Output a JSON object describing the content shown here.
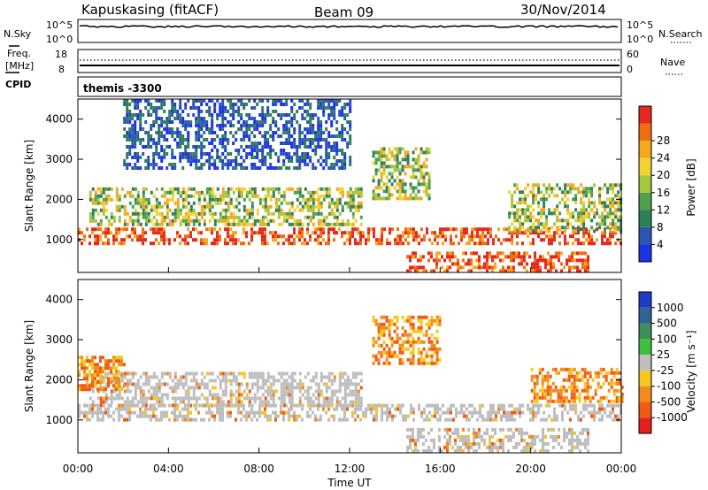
{
  "header": {
    "station": "Kapuskasing (fitACF)",
    "beam": "Beam 09",
    "date": "30/Nov/2014"
  },
  "strips": {
    "nsky_label": "N.Sky",
    "nsearch_label": "N.Search",
    "nsky_ticks": [
      "10^5",
      "10^0"
    ],
    "nsearch_ticks": [
      "10^5",
      "10^0"
    ],
    "freq_label_1": "Freq.",
    "freq_label_2": "[MHz]",
    "freq_ticks": [
      "18",
      "8"
    ],
    "nave_label": "Nave",
    "nave_ticks": [
      "60",
      "0"
    ],
    "cpid_label": "CPID",
    "cpid_value": "themis -3300"
  },
  "chart_data": [
    {
      "type": "heatmap",
      "name": "power-panel",
      "ylabel": "Slant Range [km]",
      "xlabel": "",
      "xlim": [
        "00:00",
        "00:00"
      ],
      "ylim": [
        180,
        4500
      ],
      "y_ticks": [
        1000,
        2000,
        3000,
        4000
      ],
      "colorbar": {
        "label": "Power [dB]",
        "ticks": [
          4,
          8,
          12,
          16,
          20,
          24,
          28
        ],
        "colors": [
          "#1e32e6",
          "#2d56b4",
          "#2f7f5a",
          "#4fa04a",
          "#a4c641",
          "#f0d232",
          "#f5a81e",
          "#f06e12",
          "#e6281e"
        ]
      },
      "features": [
        {
          "start": "00:00",
          "end": "24:00",
          "range_km": [
            900,
            1300
          ],
          "level": "high"
        },
        {
          "start": "14:30",
          "end": "22:30",
          "range_km": [
            200,
            700
          ],
          "level": "high"
        },
        {
          "start": "00:30",
          "end": "12:30",
          "range_km": [
            1400,
            2300
          ],
          "level": "medium"
        },
        {
          "start": "02:00",
          "end": "12:00",
          "range_km": [
            2800,
            4500
          ],
          "level": "low"
        },
        {
          "start": "13:00",
          "end": "15:30",
          "range_km": [
            2000,
            3300
          ],
          "level": "medium"
        },
        {
          "start": "19:00",
          "end": "24:00",
          "range_km": [
            1200,
            2400
          ],
          "level": "medium"
        }
      ]
    },
    {
      "type": "heatmap",
      "name": "velocity-panel",
      "ylabel": "Slant Range [km]",
      "xlabel": "Time UT",
      "x_ticks": [
        "00:00",
        "04:00",
        "08:00",
        "12:00",
        "16:00",
        "20:00",
        "00:00"
      ],
      "ylim": [
        180,
        4500
      ],
      "y_ticks": [
        1000,
        2000,
        3000,
        4000
      ],
      "colorbar": {
        "label": "Velocity [m s⁻¹]",
        "ticks": [
          1000,
          500,
          100,
          25,
          -25,
          -100,
          -500,
          -1000
        ],
        "colors": [
          "#1e3cc8",
          "#2f6496",
          "#3f8f5a",
          "#3fbf3f",
          "#bebebe",
          "#f5c81e",
          "#f08c1e",
          "#f05a14",
          "#e61e1e"
        ]
      },
      "features": [
        {
          "start": "00:00",
          "end": "24:00",
          "range_km": [
            1000,
            1400
          ],
          "class": "ground-scatter"
        },
        {
          "start": "00:30",
          "end": "12:30",
          "range_km": [
            1400,
            2200
          ],
          "class": "ground-scatter"
        },
        {
          "start": "14:30",
          "end": "22:30",
          "range_km": [
            200,
            800
          ],
          "class": "ground-scatter"
        },
        {
          "start": "00:00",
          "end": "02:00",
          "range_km": [
            1800,
            2600
          ],
          "class": "negative-velocity"
        },
        {
          "start": "13:00",
          "end": "16:00",
          "range_km": [
            2400,
            3600
          ],
          "class": "negative-velocity"
        },
        {
          "start": "20:00",
          "end": "24:00",
          "range_km": [
            1500,
            2300
          ],
          "class": "negative-velocity"
        }
      ]
    }
  ]
}
